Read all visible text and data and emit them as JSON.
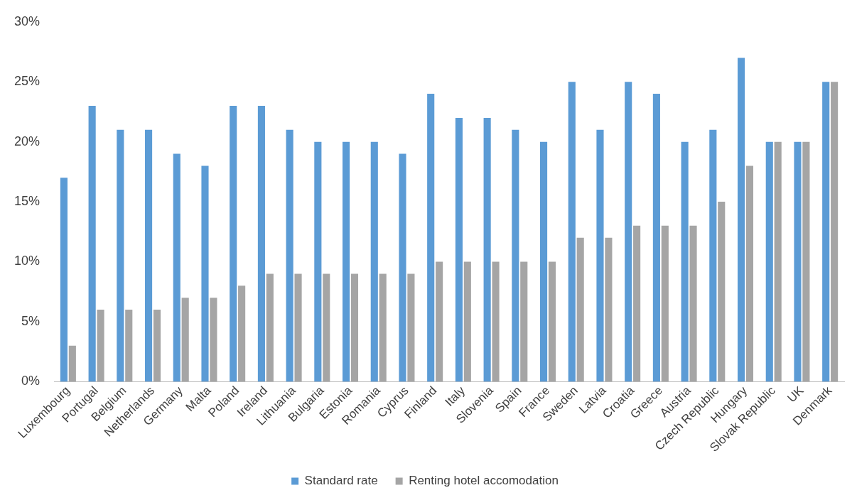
{
  "chart_data": {
    "type": "bar",
    "categories": [
      "Luxembourg",
      "Portugal",
      "Belgium",
      "Netherlands",
      "Germany",
      "Malta",
      "Poland",
      "Ireland",
      "Lithuania",
      "Bulgaria",
      "Estonia",
      "Romania",
      "Cyprus",
      "Finland",
      "Italy",
      "Slovenia",
      "Spain",
      "France",
      "Sweden",
      "Latvia",
      "Croatia",
      "Greece",
      "Austria",
      "Czech Republic",
      "Hungary",
      "Slovak Republic",
      "UK",
      "Denmark"
    ],
    "series": [
      {
        "name": "Standard rate",
        "color": "#5b9bd5",
        "values": [
          17,
          23,
          21,
          21,
          19,
          18,
          23,
          23,
          21,
          20,
          20,
          20,
          19,
          24,
          22,
          22,
          21,
          20,
          25,
          21,
          25,
          24,
          20,
          21,
          27,
          20,
          20,
          25
        ]
      },
      {
        "name": "Renting hotel accomodation",
        "color": "#a5a5a5",
        "values": [
          3,
          6,
          6,
          6,
          7,
          7,
          8,
          9,
          9,
          9,
          9,
          9,
          9,
          10,
          10,
          10,
          10,
          10,
          12,
          12,
          13,
          13,
          13,
          15,
          18,
          20,
          20,
          25
        ]
      }
    ],
    "ylim": [
      0,
      30
    ],
    "yticks": [
      {
        "value": 0,
        "label": "0%"
      },
      {
        "value": 5,
        "label": "5%"
      },
      {
        "value": 10,
        "label": "10%"
      },
      {
        "value": 15,
        "label": "15%"
      },
      {
        "value": 20,
        "label": "20%"
      },
      {
        "value": 25,
        "label": "25%"
      },
      {
        "value": 30,
        "label": "30%"
      }
    ],
    "grid": false,
    "legend": "bottom"
  }
}
